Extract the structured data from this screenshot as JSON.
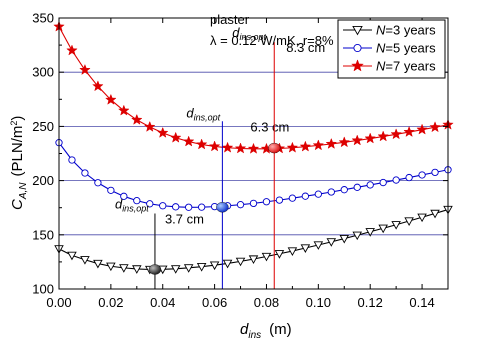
{
  "chart_data": {
    "type": "line",
    "annotation": {
      "material": "plaster",
      "params_line": "λ = 0.12 W/mK,  r=8%"
    },
    "xlabel": {
      "main": "d",
      "sub": "ins",
      "unit": "(m)"
    },
    "ylabel": {
      "main": "C",
      "sub": "A,N",
      "unit": "(PLN/m",
      "sup": "2",
      "close": ")"
    },
    "xlim": [
      0.0,
      0.15
    ],
    "ylim": [
      100,
      350
    ],
    "x_ticks": [
      0.0,
      0.02,
      0.04,
      0.06,
      0.08,
      0.1,
      0.12,
      0.14
    ],
    "x_tick_labels": [
      "0.00",
      "0.02",
      "0.04",
      "0.06",
      "0.08",
      "0.10",
      "0.12",
      "0.14"
    ],
    "y_ticks": [
      100,
      150,
      200,
      250,
      300,
      350
    ],
    "y_tick_labels": [
      "100",
      "150",
      "200",
      "250",
      "300",
      "350"
    ],
    "grid_y": [
      150,
      200,
      250,
      300
    ],
    "grid": "horizontal",
    "legend_position": "top-right",
    "series": [
      {
        "name": "N=3 years",
        "legend_var": "N",
        "legend_rest": "=3 years",
        "color": "#000000",
        "marker": "triangle-down",
        "x": [
          0.0,
          0.005,
          0.01,
          0.015,
          0.02,
          0.025,
          0.03,
          0.035,
          0.04,
          0.045,
          0.05,
          0.055,
          0.06,
          0.065,
          0.07,
          0.075,
          0.08,
          0.085,
          0.09,
          0.095,
          0.1,
          0.105,
          0.11,
          0.115,
          0.12,
          0.125,
          0.13,
          0.135,
          0.14,
          0.145,
          0.15
        ],
        "y": [
          137,
          131,
          127,
          123.5,
          121,
          119.5,
          118.5,
          118,
          118.2,
          118.6,
          119.5,
          120.6,
          122,
          123.6,
          125.5,
          127.6,
          130,
          132.5,
          135,
          137.8,
          140.6,
          143.5,
          146.5,
          149.6,
          152.8,
          156,
          159.3,
          162.7,
          166.2,
          169.7,
          173.3
        ],
        "optimum": {
          "x": 0.037,
          "y": 118,
          "label_var": "d",
          "label_sub": "ins,opt",
          "label_value": "3.7 cm",
          "marker_color": "#333333"
        }
      },
      {
        "name": "N=5 years",
        "legend_var": "N",
        "legend_rest": "=5 years",
        "color": "#0000cc",
        "marker": "circle",
        "x": [
          0.0,
          0.005,
          0.01,
          0.015,
          0.02,
          0.025,
          0.03,
          0.035,
          0.04,
          0.045,
          0.05,
          0.055,
          0.06,
          0.065,
          0.07,
          0.075,
          0.08,
          0.085,
          0.09,
          0.095,
          0.1,
          0.105,
          0.11,
          0.115,
          0.12,
          0.125,
          0.13,
          0.135,
          0.14,
          0.145,
          0.15
        ],
        "y": [
          235,
          219,
          207,
          198,
          191,
          185.5,
          181.5,
          178.6,
          176.8,
          175.8,
          175.4,
          175.5,
          176,
          176.8,
          177.8,
          179,
          180.5,
          182,
          183.8,
          185.6,
          187.5,
          189.5,
          191.6,
          193.8,
          196,
          198.2,
          200.5,
          202.8,
          205.2,
          207.6,
          210
        ],
        "optimum": {
          "x": 0.063,
          "y": 175.4,
          "label_var": "d",
          "label_sub": "ins,opt",
          "label_value": "6.3 cm",
          "marker_color": "#2255dd"
        }
      },
      {
        "name": "N=7 years",
        "legend_var": "N",
        "legend_rest": "=7 years",
        "color": "#dd0000",
        "marker": "star",
        "x": [
          0.0,
          0.005,
          0.01,
          0.015,
          0.02,
          0.025,
          0.03,
          0.035,
          0.04,
          0.045,
          0.05,
          0.055,
          0.06,
          0.065,
          0.07,
          0.075,
          0.08,
          0.085,
          0.09,
          0.095,
          0.1,
          0.105,
          0.11,
          0.115,
          0.12,
          0.125,
          0.13,
          0.135,
          0.14,
          0.145,
          0.15
        ],
        "y": [
          342,
          320,
          302,
          287,
          274.5,
          264.5,
          256,
          249.5,
          244,
          239.5,
          236,
          233.3,
          231.5,
          230.3,
          229.6,
          229.3,
          229.3,
          229.6,
          230.3,
          231.3,
          232.5,
          233.8,
          235.3,
          237,
          238.8,
          240.7,
          242.7,
          244.8,
          247,
          249.2,
          251.5
        ],
        "optimum": {
          "x": 0.083,
          "y": 230,
          "label_var": "d",
          "label_sub": "ins,opt",
          "label_value": "8.3 cm",
          "marker_color": "#ee3333"
        }
      }
    ]
  }
}
